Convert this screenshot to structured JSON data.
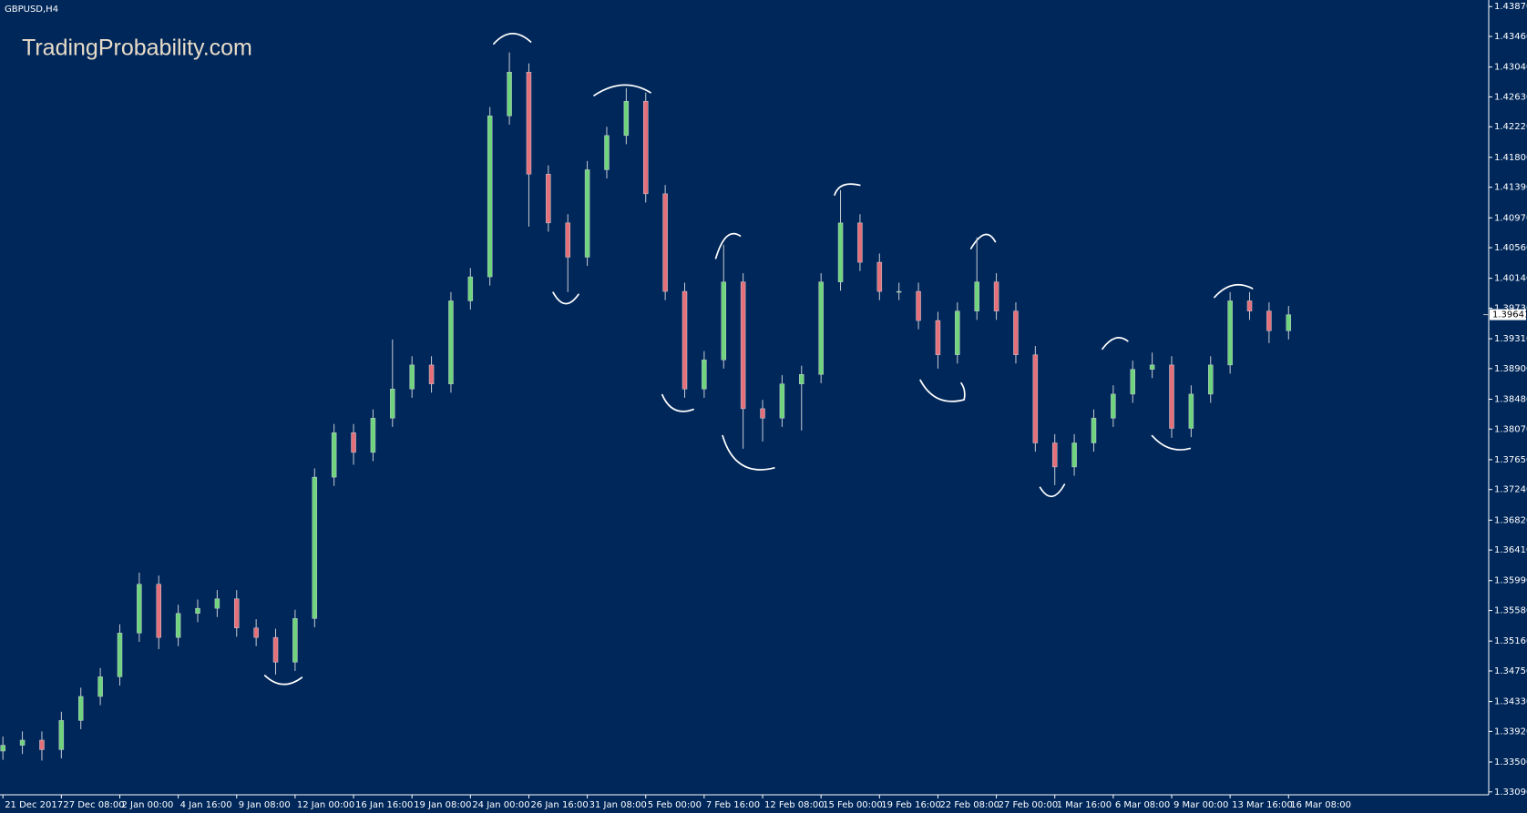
{
  "chart_data": {
    "type": "candlestick",
    "title": "GBPUSD,H4",
    "annotation": "TradingProbability.com",
    "categories": [
      "21 Dec 2017",
      null,
      null,
      "27 Dec 08:00",
      null,
      null,
      "2 Jan 00:00",
      null,
      null,
      "4 Jan 16:00",
      null,
      null,
      "9 Jan 08:00",
      null,
      null,
      "12 Jan 00:00",
      null,
      null,
      "16 Jan 16:00",
      null,
      null,
      "19 Jan 08:00",
      null,
      null,
      "24 Jan 00:00",
      null,
      null,
      "26 Jan 16:00",
      null,
      null,
      "31 Jan 08:00",
      null,
      null,
      "5 Feb 00:00",
      null,
      null,
      "7 Feb 16:00",
      null,
      null,
      "12 Feb 08:00",
      null,
      null,
      "15 Feb 00:00",
      null,
      null,
      "19 Feb 16:00",
      null,
      null,
      "22 Feb 08:00",
      null,
      null,
      "27 Feb 00:00",
      null,
      null,
      "1 Mar 16:00",
      null,
      null,
      "6 Mar 08:00",
      null,
      null,
      "9 Mar 00:00",
      null,
      null,
      "13 Mar 16:00",
      null,
      null,
      "16 Mar 08:00"
    ],
    "open": [
      1.3365,
      1.3373,
      1.338,
      1.3367,
      1.3407,
      1.344,
      1.3467,
      1.3527,
      1.3594,
      1.3521,
      1.3554,
      1.3561,
      1.3574,
      1.3534,
      1.3521,
      1.3487,
      1.3547,
      1.3741,
      1.3802,
      1.3775,
      1.3822,
      1.3862,
      1.3895,
      1.3869,
      1.3983,
      1.4016,
      1.4237,
      1.4297,
      1.4157,
      1.409,
      1.4043,
      1.4163,
      1.421,
      1.4257,
      1.413,
      1.3996,
      1.3862,
      1.3902,
      1.4009,
      1.3835,
      1.3822,
      1.3869,
      1.3882,
      1.4009,
      1.409,
      1.4036,
      1.3996,
      1.3996,
      1.3956,
      1.3909,
      1.3969,
      1.4009,
      1.3969,
      1.3909,
      1.3788,
      1.3755,
      1.3788,
      1.3822,
      1.3855,
      1.3889,
      1.3895,
      1.3808,
      1.3855,
      1.3895,
      1.3983,
      1.3969,
      1.3942
    ],
    "high": [
      1.3385,
      1.3392,
      1.3392,
      1.3419,
      1.3452,
      1.3479,
      1.3539,
      1.361,
      1.3606,
      1.3566,
      1.3573,
      1.3586,
      1.3586,
      1.3546,
      1.3533,
      1.3559,
      1.3753,
      1.3814,
      1.3814,
      1.3834,
      1.393,
      1.3907,
      1.3907,
      1.3995,
      1.4028,
      1.4249,
      1.4324,
      1.4309,
      1.4169,
      1.4102,
      1.4175,
      1.4222,
      1.4275,
      1.4269,
      1.4142,
      1.4008,
      1.3914,
      1.406,
      1.4021,
      1.3847,
      1.3881,
      1.3894,
      1.4021,
      1.4135,
      1.4102,
      1.4048,
      1.4008,
      1.4008,
      1.3968,
      1.3981,
      1.407,
      1.4021,
      1.3981,
      1.3921,
      1.38,
      1.38,
      1.3834,
      1.3867,
      1.3901,
      1.3912,
      1.3907,
      1.3867,
      1.3907,
      1.3995,
      1.3995,
      1.3981,
      1.3976
    ],
    "low": [
      1.3353,
      1.3361,
      1.3352,
      1.3355,
      1.3395,
      1.3428,
      1.3455,
      1.3515,
      1.3505,
      1.3509,
      1.3542,
      1.3549,
      1.3522,
      1.3509,
      1.347,
      1.3475,
      1.3535,
      1.3729,
      1.3758,
      1.3763,
      1.381,
      1.385,
      1.3857,
      1.3857,
      1.3971,
      1.4004,
      1.4225,
      1.4085,
      1.4078,
      1.3995,
      1.4031,
      1.4151,
      1.4198,
      1.4118,
      1.3984,
      1.385,
      1.385,
      1.389,
      1.378,
      1.379,
      1.381,
      1.3805,
      1.387,
      1.3997,
      1.4024,
      1.3984,
      1.3984,
      1.3944,
      1.389,
      1.3897,
      1.3957,
      1.3957,
      1.3897,
      1.3776,
      1.373,
      1.3743,
      1.3776,
      1.381,
      1.3843,
      1.3877,
      1.3795,
      1.3796,
      1.3843,
      1.3883,
      1.3957,
      1.3925,
      1.393
    ],
    "close": [
      1.3373,
      1.338,
      1.3367,
      1.3407,
      1.344,
      1.3467,
      1.3527,
      1.3594,
      1.3521,
      1.3554,
      1.3561,
      1.3574,
      1.3534,
      1.3521,
      1.3487,
      1.3547,
      1.3741,
      1.3802,
      1.3775,
      1.3822,
      1.3862,
      1.3895,
      1.3869,
      1.3983,
      1.4016,
      1.4237,
      1.4297,
      1.4157,
      1.409,
      1.4043,
      1.4163,
      1.421,
      1.4257,
      1.413,
      1.3996,
      1.3862,
      1.3902,
      1.4009,
      1.3835,
      1.3822,
      1.3869,
      1.3882,
      1.4009,
      1.409,
      1.4036,
      1.3996,
      1.3996,
      1.3956,
      1.3909,
      1.3969,
      1.4009,
      1.3969,
      1.3909,
      1.3788,
      1.3755,
      1.3788,
      1.3822,
      1.3855,
      1.3889,
      1.3895,
      1.3808,
      1.3855,
      1.3895,
      1.3983,
      1.3969,
      1.3942,
      1.3964
    ],
    "up_color": "#6fd47c",
    "down_color": "#e6707a",
    "wick_color": "#c8ccd4",
    "current_price": 1.39641,
    "ylim": [
      1.3305,
      1.4396
    ],
    "yticks": [
      {
        "value": 1.4387,
        "label": "1.43870"
      },
      {
        "value": 1.4346,
        "label": "1.43460"
      },
      {
        "value": 1.4304,
        "label": "1.43040"
      },
      {
        "value": 1.4263,
        "label": "1.42630"
      },
      {
        "value": 1.4222,
        "label": "1.42220"
      },
      {
        "value": 1.418,
        "label": "1.41800"
      },
      {
        "value": 1.4139,
        "label": "1.41390"
      },
      {
        "value": 1.4097,
        "label": "1.40970"
      },
      {
        "value": 1.4056,
        "label": "1.40560"
      },
      {
        "value": 1.4014,
        "label": "1.40140"
      },
      {
        "value": 1.3973,
        "label": "1.39730"
      },
      {
        "value": 1.3931,
        "label": "1.39310"
      },
      {
        "value": 1.389,
        "label": "1.38900"
      },
      {
        "value": 1.3848,
        "label": "1.38480"
      },
      {
        "value": 1.3807,
        "label": "1.38070"
      },
      {
        "value": 1.3765,
        "label": "1.37650"
      },
      {
        "value": 1.3724,
        "label": "1.37240"
      },
      {
        "value": 1.3682,
        "label": "1.36820"
      },
      {
        "value": 1.3641,
        "label": "1.36410"
      },
      {
        "value": 1.3599,
        "label": "1.35990"
      },
      {
        "value": 1.3558,
        "label": "1.35580"
      },
      {
        "value": 1.3516,
        "label": "1.35160"
      },
      {
        "value": 1.3475,
        "label": "1.34750"
      },
      {
        "value": 1.3433,
        "label": "1.34330"
      },
      {
        "value": 1.3392,
        "label": "1.33920"
      },
      {
        "value": 1.335,
        "label": "1.33500"
      },
      {
        "value": 1.3309,
        "label": "1.33090"
      }
    ],
    "grid": false
  }
}
